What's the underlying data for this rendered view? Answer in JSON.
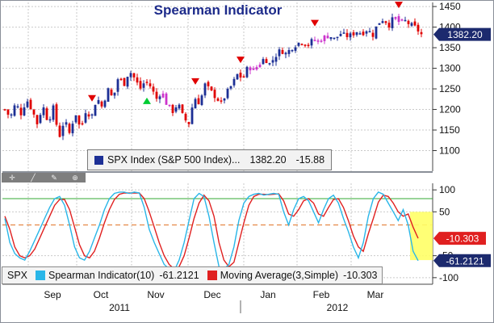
{
  "title": "Spearman Indicator",
  "colors": {
    "up_candle": "#1c2f95",
    "down_candle": "#e00000",
    "highlight_candle": "#cc33cc",
    "spearman_line": "#29b6e8",
    "ma_line": "#e02020",
    "sell_marker": "#e00000",
    "buy_marker": "#00cc33",
    "zone_highlight": "#ffff66",
    "grid": "#c9c9c9"
  },
  "price_panel": {
    "last_price_tag": "1382.20",
    "y_ticks": [
      "1450",
      "1400",
      "1350",
      "1300",
      "1250",
      "1200",
      "1150",
      "1100"
    ],
    "legend": {
      "name": "SPX Index (S&P 500 Index)...",
      "value": "1382.20",
      "change": "-15.88"
    }
  },
  "indicator_panel": {
    "y_ticks": [
      "100",
      "50",
      "-50",
      "-100"
    ],
    "ma_tag": "-10.303",
    "spearman_tag": "-61.2121",
    "legend": {
      "ticker": "SPX",
      "spearman_label": "Spearman Indicator(10)",
      "spearman_value": "-61.2121",
      "ma_label": "Moving Average(3,Simple)",
      "ma_value": "-10.303"
    }
  },
  "x_axis": {
    "months": [
      "Sep",
      "Oct",
      "Nov",
      "Dec",
      "Jan",
      "Feb",
      "Mar"
    ],
    "years": [
      "2011",
      "2012"
    ]
  },
  "chart_data": [
    {
      "type": "candlestick",
      "title": "Spearman Indicator",
      "series_name": "SPX Index (S&P 500 Index)",
      "ylim": [
        1050,
        1460
      ],
      "close_path": [
        1200,
        1180,
        1215,
        1190,
        1225,
        1200,
        1165,
        1210,
        1170,
        1205,
        1130,
        1175,
        1140,
        1195,
        1150,
        1200,
        1180,
        1230,
        1205,
        1250,
        1225,
        1280,
        1260,
        1295,
        1275,
        1250,
        1270,
        1255,
        1225,
        1245,
        1210,
        1195,
        1215,
        1180,
        1165,
        1230,
        1215,
        1260,
        1245,
        1230,
        1215,
        1240,
        1260,
        1285,
        1275,
        1305,
        1295,
        1310,
        1325,
        1310,
        1330,
        1345,
        1335,
        1350,
        1360,
        1365,
        1355,
        1370,
        1365,
        1375,
        1380,
        1370,
        1385,
        1378,
        1380,
        1390,
        1385,
        1395,
        1380,
        1410,
        1420,
        1405,
        1425,
        1410,
        1415,
        1405,
        1398,
        1382
      ],
      "last_value": 1382.2,
      "sell_signal_indices": [
        27,
        59,
        73,
        96,
        122
      ],
      "buy_signal_indices": [
        44
      ]
    },
    {
      "type": "line",
      "ylim": [
        -115,
        115
      ],
      "series": [
        {
          "name": "Spearman Indicator(10)",
          "values": [
            35,
            -20,
            -45,
            -55,
            -60,
            -40,
            -15,
            10,
            35,
            60,
            80,
            85,
            65,
            20,
            -30,
            -55,
            -60,
            -40,
            -10,
            20,
            55,
            80,
            92,
            95,
            95,
            92,
            95,
            93,
            60,
            10,
            -20,
            -45,
            -70,
            -80,
            -85,
            -60,
            -20,
            30,
            80,
            92,
            85,
            40,
            -20,
            -75,
            -80,
            -70,
            -30,
            30,
            70,
            85,
            90,
            92,
            88,
            90,
            92,
            90,
            50,
            20,
            55,
            80,
            85,
            75,
            50,
            25,
            55,
            80,
            88,
            70,
            35,
            5,
            -30,
            -55,
            -20,
            40,
            80,
            95,
            90,
            70,
            50,
            30,
            55,
            20,
            -40,
            -61.2121
          ]
        },
        {
          "name": "Moving Average(3,Simple)",
          "values": [
            40,
            10,
            -30,
            -50,
            -55,
            -50,
            -35,
            -10,
            15,
            40,
            65,
            78,
            78,
            55,
            15,
            -25,
            -50,
            -55,
            -40,
            -10,
            25,
            55,
            78,
            90,
            93,
            93,
            93,
            93,
            80,
            50,
            15,
            -20,
            -50,
            -70,
            -80,
            -75,
            -50,
            -10,
            35,
            70,
            88,
            75,
            40,
            -20,
            -60,
            -75,
            -65,
            -20,
            25,
            65,
            85,
            90,
            90,
            89,
            90,
            91,
            75,
            45,
            40,
            55,
            75,
            80,
            70,
            45,
            40,
            60,
            78,
            80,
            60,
            30,
            -5,
            -30,
            -40,
            0,
            35,
            72,
            88,
            85,
            70,
            50,
            40,
            45,
            15,
            -10.303
          ]
        }
      ],
      "reference_lines": [
        80,
        20
      ]
    }
  ]
}
